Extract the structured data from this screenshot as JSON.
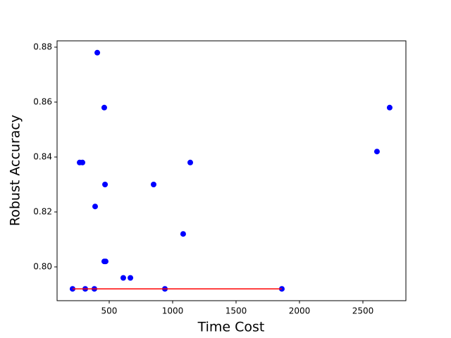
{
  "chart_data": {
    "type": "scatter",
    "xlabel": "Time Cost",
    "ylabel": "Robust Accuracy",
    "xlim": [
      89,
      2839
    ],
    "ylim": [
      0.7877,
      0.8823
    ],
    "xticks": [
      500,
      1000,
      1500,
      2000,
      2500
    ],
    "yticks": [
      {
        "value": 0.8,
        "label": "0.80"
      },
      0.82,
      0.84,
      0.86,
      0.88
    ],
    "series": [
      {
        "type": "scatter",
        "color": "#0000ff",
        "x": [
          211,
          311,
          383,
          939,
          1861,
          406,
          461,
          267,
          289,
          467,
          389,
          461,
          472,
          611,
          667,
          850,
          1083,
          1139,
          2611,
          2711
        ],
        "y": [
          0.792,
          0.792,
          0.792,
          0.792,
          0.792,
          0.878,
          0.858,
          0.838,
          0.838,
          0.83,
          0.822,
          0.802,
          0.802,
          0.796,
          0.796,
          0.83,
          0.812,
          0.838,
          0.842,
          0.858
        ]
      },
      {
        "type": "line",
        "color": "#ff0000",
        "x": [
          211,
          1861
        ],
        "y": [
          0.792,
          0.792
        ]
      }
    ]
  }
}
